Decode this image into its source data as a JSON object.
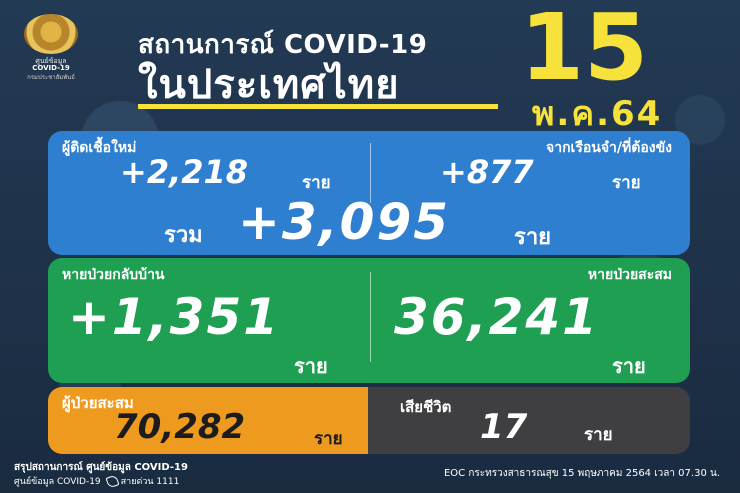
{
  "header": {
    "logo_lines": [
      "ศูนย์ข้อมูล",
      "COVID-19",
      "กรมประชาสัมพันธ์"
    ],
    "title_line1": "สถานการณ์ COVID-19",
    "title_line2": "ในประเทศไทย",
    "date_day": "15",
    "date_month": "พ.ค.64"
  },
  "new_cases": {
    "label": "ผู้ติดเชื้อใหม่",
    "value": "+2,218",
    "unit": "ราย"
  },
  "prison_cases": {
    "label": "จากเรือนจำ/ที่ต้องขัง",
    "value": "+877",
    "unit": "ราย"
  },
  "total_new": {
    "label": "รวม",
    "value": "+3,095",
    "unit": "ราย"
  },
  "recovered_today": {
    "label": "หายป่วยกลับบ้าน",
    "value": "+1,351",
    "unit": "ราย"
  },
  "recovered_cumulative": {
    "label": "หายป่วยสะสม",
    "value": "36,241",
    "unit": "ราย"
  },
  "cumulative_cases": {
    "label": "ผู้ป่วยสะสม",
    "value": "70,282",
    "unit": "ราย"
  },
  "deaths": {
    "label": "เสียชีวิต",
    "value": "17",
    "unit": "ราย"
  },
  "footer": {
    "summary": "สรุปสถานการณ์ ศูนย์ข้อมูล COVID-19",
    "center": "ศูนย์ข้อมูล COVID-19",
    "hotline": "สายด่วน 1111",
    "source": "EOC กระทรวงสาธารณสุข 15 พฤษภาคม 2564 เวลา 07.30 น."
  },
  "colors": {
    "background": "#1f3147",
    "accent_yellow": "#f6e23a",
    "blue_card": "#2f7fd0",
    "green_card": "#1e9f52",
    "orange_card": "#ee9a1e",
    "gray_card": "#3f3f42"
  }
}
